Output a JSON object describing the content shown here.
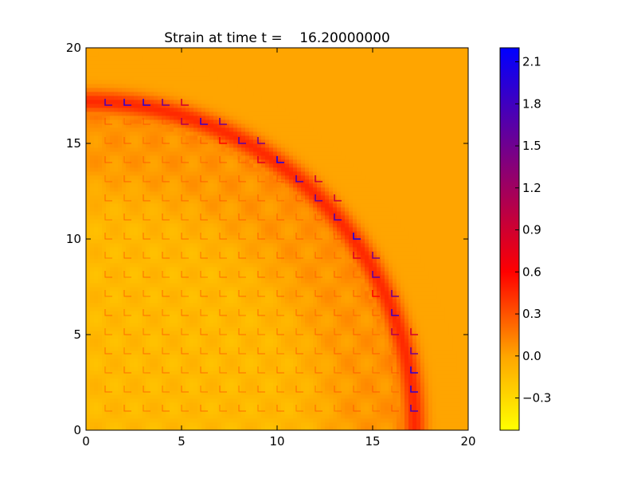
{
  "chart_data": {
    "type": "heatmap",
    "title": "Strain at time t =    16.20000000",
    "xlabel": "",
    "ylabel": "",
    "xlim": [
      0,
      20
    ],
    "ylim": [
      0,
      20
    ],
    "x_ticks": [
      "0",
      "5",
      "10",
      "15",
      "20"
    ],
    "y_ticks": [
      "0",
      "5",
      "10",
      "15",
      "20"
    ],
    "colorbar": {
      "vmin": -0.53,
      "vmax": 2.2,
      "ticks": [
        "−0.3",
        "0.0",
        "0.3",
        "0.6",
        "0.9",
        "1.2",
        "1.5",
        "1.8",
        "2.1"
      ],
      "tick_values": [
        -0.3,
        0.0,
        0.3,
        0.6,
        0.9,
        1.2,
        1.5,
        1.8,
        2.1
      ],
      "colormap": [
        "#ffff00",
        "#ffa500",
        "#ff0000",
        "#0000ff"
      ]
    },
    "field": {
      "background_value": 0.0,
      "shock_front_radius": 17.2,
      "shock_peak_value": 0.45,
      "inner_region_radius": 13.0,
      "inner_region_value": -0.12,
      "grid_spacing": 1.0,
      "grid_artifact_peak_value": 2.1
    },
    "grid": false
  }
}
